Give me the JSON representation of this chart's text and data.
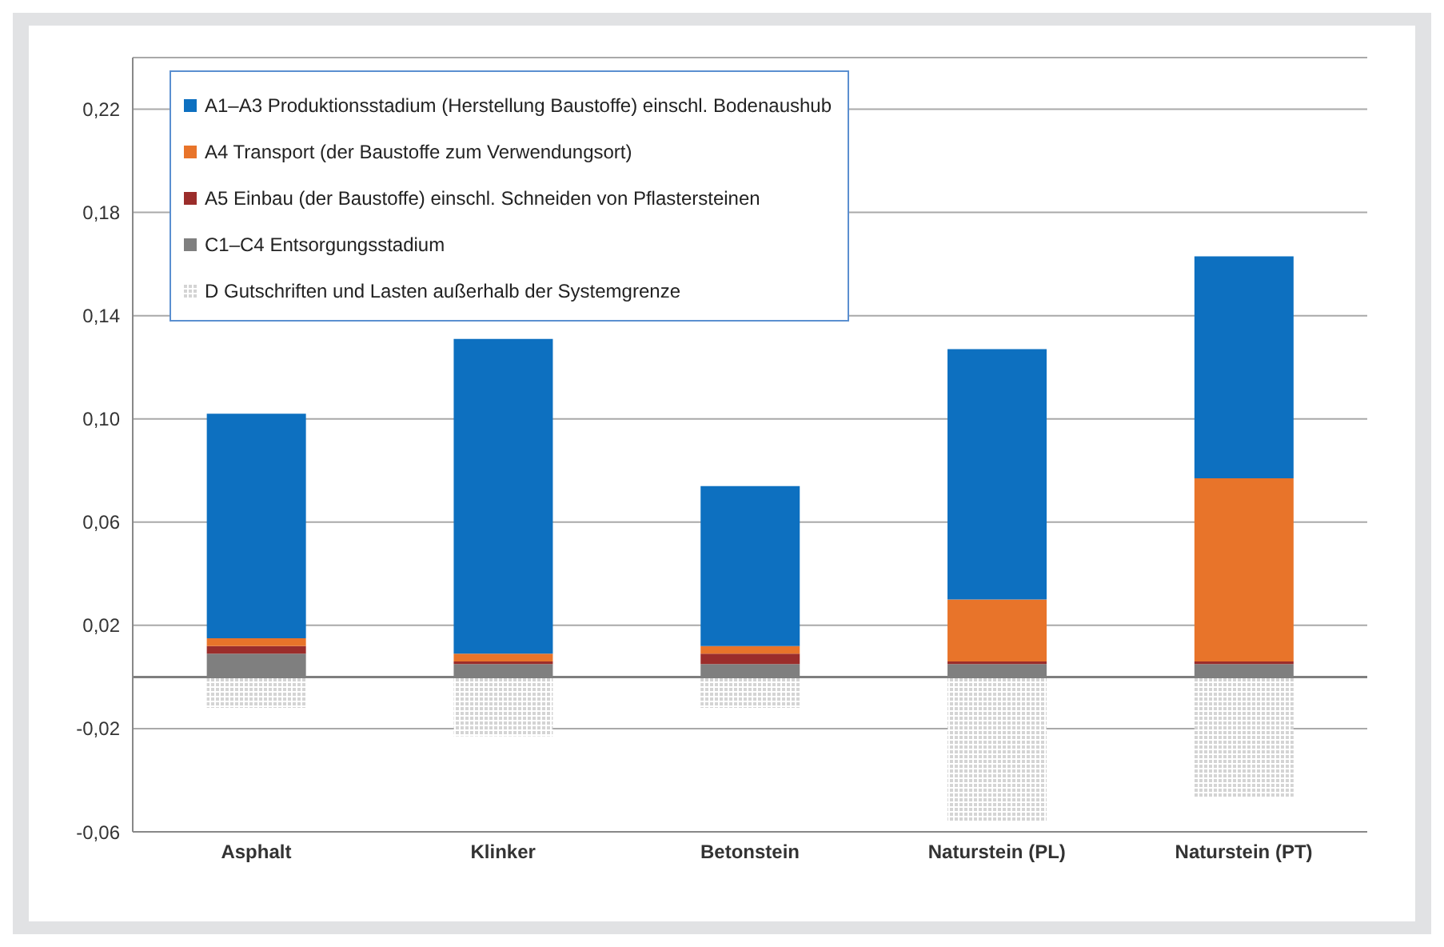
{
  "chart_data": {
    "type": "bar",
    "stacked": true,
    "categories": [
      "Asphalt",
      "Klinker",
      "Betonstein",
      "Naturstein (PL)",
      "Naturstein (PT)"
    ],
    "series": [
      {
        "name": "C1–C4  Entsorgungsstadium",
        "color": "#7f7f7f",
        "values": [
          0.009,
          0.005,
          0.005,
          0.005,
          0.005
        ]
      },
      {
        "name": "A5  Einbau (der Baustoffe) einschl. Schneiden von Pflastersteinen",
        "color": "#9b2d2b",
        "values": [
          0.003,
          0.001,
          0.004,
          0.001,
          0.001
        ]
      },
      {
        "name": "A4  Transport (der Baustoffe zum Verwendungsort)",
        "color": "#e8742a",
        "values": [
          0.003,
          0.003,
          0.003,
          0.024,
          0.071
        ]
      },
      {
        "name": "A1–A3  Produktionsstadium (Herstellung Baustoffe) einschl. Bodenaushub",
        "color": "#0d70c0",
        "values": [
          0.087,
          0.122,
          0.062,
          0.097,
          0.086
        ]
      },
      {
        "name": "D  Gutschriften und Lasten außerhalb der Systemgrenze",
        "color": "#d4d4d4",
        "values": [
          -0.012,
          -0.023,
          -0.012,
          -0.056,
          -0.047
        ]
      }
    ],
    "ylim": [
      -0.06,
      0.24
    ],
    "yticks": [
      {
        "value": -0.06,
        "label": "-0,06"
      },
      {
        "value": -0.02,
        "label": "-0,02"
      },
      {
        "value": 0.02,
        "label": "0,02"
      },
      {
        "value": 0.06,
        "label": "0,06"
      },
      {
        "value": 0.1,
        "label": "0,10"
      },
      {
        "value": 0.14,
        "label": "0,14"
      },
      {
        "value": 0.18,
        "label": "0,18"
      },
      {
        "value": 0.22,
        "label": "0,22"
      }
    ],
    "ref_lines": [
      {
        "axis": "y",
        "value": 0,
        "color": "#7f7f7f"
      }
    ],
    "grid": "y",
    "legend": "top left"
  }
}
